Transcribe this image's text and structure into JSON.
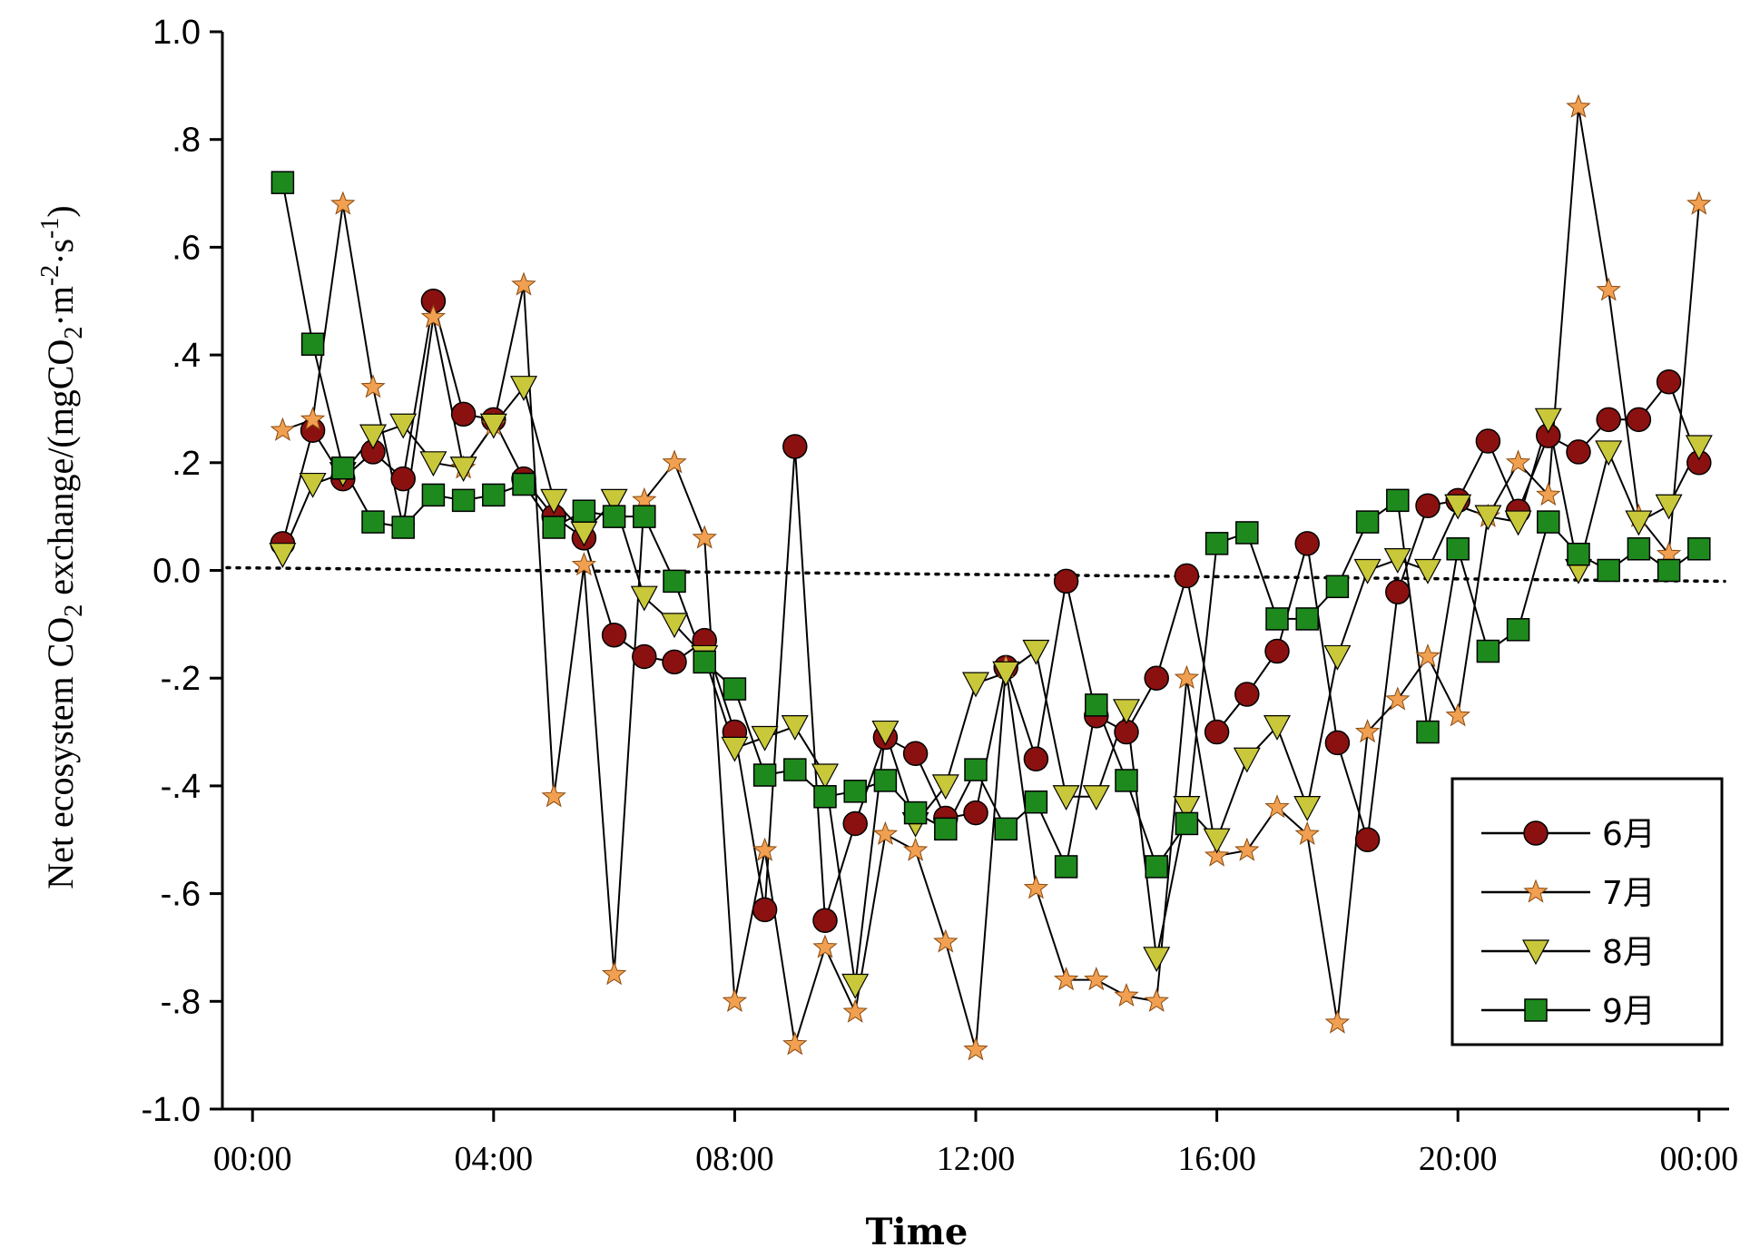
{
  "chart_data": {
    "type": "line",
    "xlabel": "Time",
    "ylabel": "Net ecosystem CO2 exchange/(mgCO2·m-2·s-1)",
    "ylabel_parts": {
      "a": "Net ecosystem CO",
      "b": "2",
      "c": " exchange/(mgCO",
      "d": "2",
      "e": "·m",
      "f": "-2",
      "g": "·s",
      "h": "-1",
      "i": ")"
    },
    "ylim": [
      -1.0,
      1.0
    ],
    "xlim": [
      -0.5,
      24.5
    ],
    "y_ticks": [
      {
        "value": 1.0,
        "label": "1.0"
      },
      {
        "value": 0.8,
        "label": ".8"
      },
      {
        "value": 0.6,
        "label": ".6"
      },
      {
        "value": 0.4,
        "label": ".4"
      },
      {
        "value": 0.2,
        "label": ".2"
      },
      {
        "value": 0.0,
        "label": "0.0"
      },
      {
        "value": -0.2,
        "label": "-.2"
      },
      {
        "value": -0.4,
        "label": "-.4"
      },
      {
        "value": -0.6,
        "label": "-.6"
      },
      {
        "value": -0.8,
        "label": "-.8"
      },
      {
        "value": -1.0,
        "label": "-1.0"
      }
    ],
    "x_ticks": [
      {
        "value": 0,
        "label": "00:00"
      },
      {
        "value": 4,
        "label": "04:00"
      },
      {
        "value": 8,
        "label": "08:00"
      },
      {
        "value": 12,
        "label": "12:00"
      },
      {
        "value": 16,
        "label": "16:00"
      },
      {
        "value": 20,
        "label": "20:00"
      },
      {
        "value": 24,
        "label": "00:00"
      }
    ],
    "zero_line": {
      "style": "dotted",
      "y": 0.0
    },
    "legend": {
      "position": "bottom-right"
    },
    "series": [
      {
        "name": "6月",
        "marker": "circle",
        "color": "#8b1111",
        "x": [
          0.5,
          1,
          1.5,
          2,
          2.5,
          3,
          3.5,
          4,
          4.5,
          5,
          5.5,
          6,
          6.5,
          7,
          7.5,
          8,
          8.5,
          9,
          9.5,
          10,
          10.5,
          11,
          11.5,
          12,
          12.5,
          13,
          13.5,
          14,
          14.5,
          15,
          15.5,
          16,
          16.5,
          17,
          17.5,
          18,
          18.5,
          19,
          19.5,
          20,
          20.5,
          21,
          21.5,
          22,
          22.5,
          23,
          23.5,
          24
        ],
        "y": [
          0.05,
          0.26,
          0.17,
          0.22,
          0.17,
          0.5,
          0.29,
          0.28,
          0.17,
          0.1,
          0.06,
          -0.12,
          -0.16,
          -0.17,
          -0.13,
          -0.3,
          -0.63,
          0.23,
          -0.65,
          -0.47,
          -0.31,
          -0.34,
          -0.46,
          -0.45,
          -0.18,
          -0.35,
          -0.02,
          -0.27,
          -0.3,
          -0.2,
          -0.01,
          -0.3,
          -0.23,
          -0.15,
          0.05,
          -0.32,
          -0.5,
          -0.04,
          0.12,
          0.13,
          0.24,
          0.11,
          0.25,
          0.22,
          0.28,
          0.28,
          0.35,
          0.2
        ]
      },
      {
        "name": "7月",
        "marker": "star",
        "color": "#f0a050",
        "x": [
          0.5,
          1,
          1.5,
          2,
          2.5,
          3,
          3.5,
          4,
          4.5,
          5,
          5.5,
          6,
          6.5,
          7,
          7.5,
          8,
          8.5,
          9,
          9.5,
          10,
          10.5,
          11,
          11.5,
          12,
          12.5,
          13,
          13.5,
          14,
          14.5,
          15,
          15.5,
          16,
          16.5,
          17,
          17.5,
          18,
          18.5,
          19,
          19.5,
          20,
          20.5,
          21,
          21.5,
          22,
          22.5,
          23,
          23.5,
          24
        ],
        "y": [
          0.26,
          0.28,
          0.68,
          0.34,
          0.08,
          0.47,
          0.19,
          0.27,
          0.53,
          -0.42,
          0.01,
          -0.75,
          0.13,
          0.2,
          0.06,
          -0.8,
          -0.52,
          -0.88,
          -0.7,
          -0.82,
          -0.49,
          -0.52,
          -0.69,
          -0.89,
          -0.18,
          -0.59,
          -0.76,
          -0.76,
          -0.79,
          -0.8,
          -0.2,
          -0.53,
          -0.52,
          -0.44,
          -0.49,
          -0.84,
          -0.3,
          -0.24,
          -0.16,
          -0.27,
          0.1,
          0.2,
          0.14,
          0.86,
          0.52,
          0.1,
          0.03,
          0.68
        ]
      },
      {
        "name": "8月",
        "marker": "triangle-down",
        "color": "#c8c83a",
        "x": [
          0.5,
          1,
          1.5,
          2,
          2.5,
          3,
          3.5,
          4,
          4.5,
          5,
          5.5,
          6,
          6.5,
          7,
          7.5,
          8,
          8.5,
          9,
          9.5,
          10,
          10.5,
          11,
          11.5,
          12,
          12.5,
          13,
          13.5,
          14,
          14.5,
          15,
          15.5,
          16,
          16.5,
          17,
          17.5,
          18,
          18.5,
          19,
          19.5,
          20,
          20.5,
          21,
          21.5,
          22,
          22.5,
          23,
          23.5,
          24
        ],
        "y": [
          0.03,
          0.16,
          0.18,
          0.25,
          0.27,
          0.2,
          0.19,
          0.27,
          0.34,
          0.13,
          0.07,
          0.13,
          -0.05,
          -0.1,
          -0.16,
          -0.33,
          -0.31,
          -0.29,
          -0.38,
          -0.77,
          -0.3,
          -0.47,
          -0.4,
          -0.21,
          -0.19,
          -0.15,
          -0.42,
          -0.42,
          -0.26,
          -0.72,
          -0.44,
          -0.5,
          -0.35,
          -0.29,
          -0.44,
          -0.16,
          0.0,
          0.02,
          0.0,
          0.12,
          0.1,
          0.09,
          0.28,
          0.0,
          0.22,
          0.09,
          0.12,
          0.23
        ]
      },
      {
        "name": "9月",
        "marker": "square",
        "color": "#1e8a1e",
        "x": [
          0.5,
          1,
          1.5,
          2,
          2.5,
          3,
          3.5,
          4,
          4.5,
          5,
          5.5,
          6,
          6.5,
          7,
          7.5,
          8,
          8.5,
          9,
          9.5,
          10,
          10.5,
          11,
          11.5,
          12,
          12.5,
          13,
          13.5,
          14,
          14.5,
          15,
          15.5,
          16,
          16.5,
          17,
          17.5,
          18,
          18.5,
          19,
          19.5,
          20,
          20.5,
          21,
          21.5,
          22,
          22.5,
          23,
          23.5,
          24
        ],
        "y": [
          0.72,
          0.42,
          0.19,
          0.09,
          0.08,
          0.14,
          0.13,
          0.14,
          0.16,
          0.08,
          0.11,
          0.1,
          0.1,
          -0.02,
          -0.17,
          -0.22,
          -0.38,
          -0.37,
          -0.42,
          -0.41,
          -0.39,
          -0.45,
          -0.48,
          -0.37,
          -0.48,
          -0.43,
          -0.55,
          -0.25,
          -0.39,
          -0.55,
          -0.47,
          0.05,
          0.07,
          -0.09,
          -0.09,
          -0.03,
          0.09,
          0.13,
          -0.3,
          0.04,
          -0.15,
          -0.11,
          0.09,
          0.03,
          0.0,
          0.04,
          0.0,
          0.04
        ]
      }
    ]
  }
}
